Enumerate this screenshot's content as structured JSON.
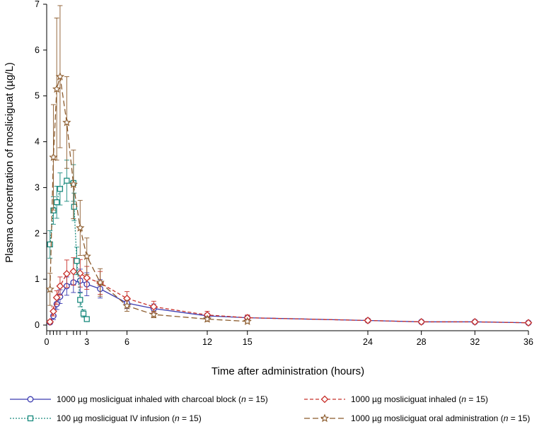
{
  "chart_data": {
    "type": "line",
    "ylabel": "Plasma concentration of mosliciguat (µg/L)",
    "xlabel": "Time after administration (hours)",
    "xlim": [
      0,
      36
    ],
    "ylim": [
      0,
      7
    ],
    "x_ticks": [
      0,
      3,
      6,
      12,
      15,
      24,
      28,
      32,
      36
    ],
    "x_tick_labels": [
      "0",
      "3",
      "6",
      "12",
      "15",
      "24",
      "28",
      "32",
      "36"
    ],
    "x_minor_ticks": [
      0.25,
      0.5,
      0.75,
      1,
      1.5,
      2,
      2.25,
      2.5
    ],
    "y_ticks": [
      0,
      1,
      2,
      3,
      4,
      5,
      6,
      7
    ],
    "y_tick_labels": [
      "0",
      "1",
      "2",
      "3",
      "4",
      "5",
      "6",
      "7"
    ],
    "grid": false,
    "legend_position": "bottom",
    "series": [
      {
        "name": "1000 µg mosliciguat inhaled with charcoal block",
        "n_text": " = 15)",
        "color": "#3b3bb0",
        "marker": "circle",
        "dash": "solid",
        "points": [
          {
            "x": 0.25,
            "y": 0.06,
            "err": 0.04
          },
          {
            "x": 0.5,
            "y": 0.2,
            "err": 0.08
          },
          {
            "x": 0.75,
            "y": 0.46,
            "err": 0.12
          },
          {
            "x": 1,
            "y": 0.62,
            "err": 0.15
          },
          {
            "x": 1.5,
            "y": 0.85,
            "err": 0.2
          },
          {
            "x": 2,
            "y": 0.93,
            "err": 0.22
          },
          {
            "x": 2.5,
            "y": 0.97,
            "err": 0.25
          },
          {
            "x": 3,
            "y": 0.89,
            "err": 0.25
          },
          {
            "x": 4,
            "y": 0.79,
            "err": 0.2
          },
          {
            "x": 6,
            "y": 0.48,
            "err": 0.12
          },
          {
            "x": 8,
            "y": 0.36,
            "err": 0.1
          },
          {
            "x": 12,
            "y": 0.2,
            "err": 0.06
          },
          {
            "x": 15,
            "y": 0.16,
            "err": 0.05
          },
          {
            "x": 24,
            "y": 0.1,
            "err": 0.04
          },
          {
            "x": 28,
            "y": 0.07,
            "err": 0.03
          },
          {
            "x": 32,
            "y": 0.07,
            "err": 0.03
          },
          {
            "x": 36,
            "y": 0.05,
            "err": 0.02
          }
        ]
      },
      {
        "name": "1000 µg mosliciguat inhaled",
        "n_text": " = 15)",
        "color": "#c8302a",
        "marker": "diamond",
        "dash": "dashed",
        "points": [
          {
            "x": 0.25,
            "y": 0.07,
            "err": 0.04
          },
          {
            "x": 0.5,
            "y": 0.3,
            "err": 0.1
          },
          {
            "x": 0.75,
            "y": 0.6,
            "err": 0.15
          },
          {
            "x": 1,
            "y": 0.85,
            "err": 0.2
          },
          {
            "x": 1.5,
            "y": 1.12,
            "err": 0.3
          },
          {
            "x": 2,
            "y": 1.17,
            "err": 0.3
          },
          {
            "x": 2.5,
            "y": 1.13,
            "err": 0.3
          },
          {
            "x": 3,
            "y": 1.03,
            "err": 0.25
          },
          {
            "x": 4,
            "y": 0.92,
            "err": 0.25
          },
          {
            "x": 6,
            "y": 0.58,
            "err": 0.15
          },
          {
            "x": 8,
            "y": 0.4,
            "err": 0.12
          },
          {
            "x": 12,
            "y": 0.22,
            "err": 0.08
          },
          {
            "x": 15,
            "y": 0.16,
            "err": 0.06
          },
          {
            "x": 24,
            "y": 0.1,
            "err": 0.04
          },
          {
            "x": 28,
            "y": 0.07,
            "err": 0.03
          },
          {
            "x": 32,
            "y": 0.07,
            "err": 0.03
          },
          {
            "x": 36,
            "y": 0.05,
            "err": 0.02
          }
        ]
      },
      {
        "name": "100 µg mosliciguat IV infusion",
        "n_text": " = 15)",
        "color": "#1a8a7e",
        "marker": "square",
        "dash": "dotted",
        "points": [
          {
            "x": 0.25,
            "y": 1.76,
            "err": 0.3
          },
          {
            "x": 0.5,
            "y": 2.5,
            "err": 0.3
          },
          {
            "x": 0.75,
            "y": 2.68,
            "err": 0.35
          },
          {
            "x": 1,
            "y": 2.97,
            "err": 0.35
          },
          {
            "x": 1.5,
            "y": 3.15,
            "err": 0.45
          },
          {
            "x": 2,
            "y": 3.1,
            "err": 0.4
          },
          {
            "x": 2.05,
            "y": 2.58,
            "err": 0.3
          },
          {
            "x": 2.25,
            "y": 1.4,
            "err": 0.3
          },
          {
            "x": 2.5,
            "y": 0.55,
            "err": 0.15
          },
          {
            "x": 2.75,
            "y": 0.25,
            "err": 0.08
          },
          {
            "x": 3,
            "y": 0.13,
            "err": 0.04
          }
        ]
      },
      {
        "name": "1000 µg mosliciguat oral administration",
        "n_text": " = 15)",
        "color": "#8b5a2b",
        "marker": "star",
        "dash": "longdash",
        "points": [
          {
            "x": 0.25,
            "y": 0.78,
            "err": 0.35
          },
          {
            "x": 0.5,
            "y": 3.66,
            "err": 1.15
          },
          {
            "x": 0.75,
            "y": 5.15,
            "err": 1.55
          },
          {
            "x": 1,
            "y": 5.42,
            "err": 1.55
          },
          {
            "x": 1.5,
            "y": 4.42,
            "err": 1.0
          },
          {
            "x": 2,
            "y": 3.07,
            "err": 0.75
          },
          {
            "x": 2.5,
            "y": 2.12,
            "err": 0.6
          },
          {
            "x": 3,
            "y": 1.5,
            "err": 0.4
          },
          {
            "x": 4,
            "y": 0.93,
            "err": 0.3
          },
          {
            "x": 6,
            "y": 0.42,
            "err": 0.12
          },
          {
            "x": 8,
            "y": 0.23,
            "err": 0.07
          },
          {
            "x": 12,
            "y": 0.13,
            "err": 0.05
          },
          {
            "x": 15,
            "y": 0.08,
            "err": 0.03
          }
        ]
      }
    ],
    "legend_n_prefix": "(",
    "legend_n_italic": "n"
  }
}
